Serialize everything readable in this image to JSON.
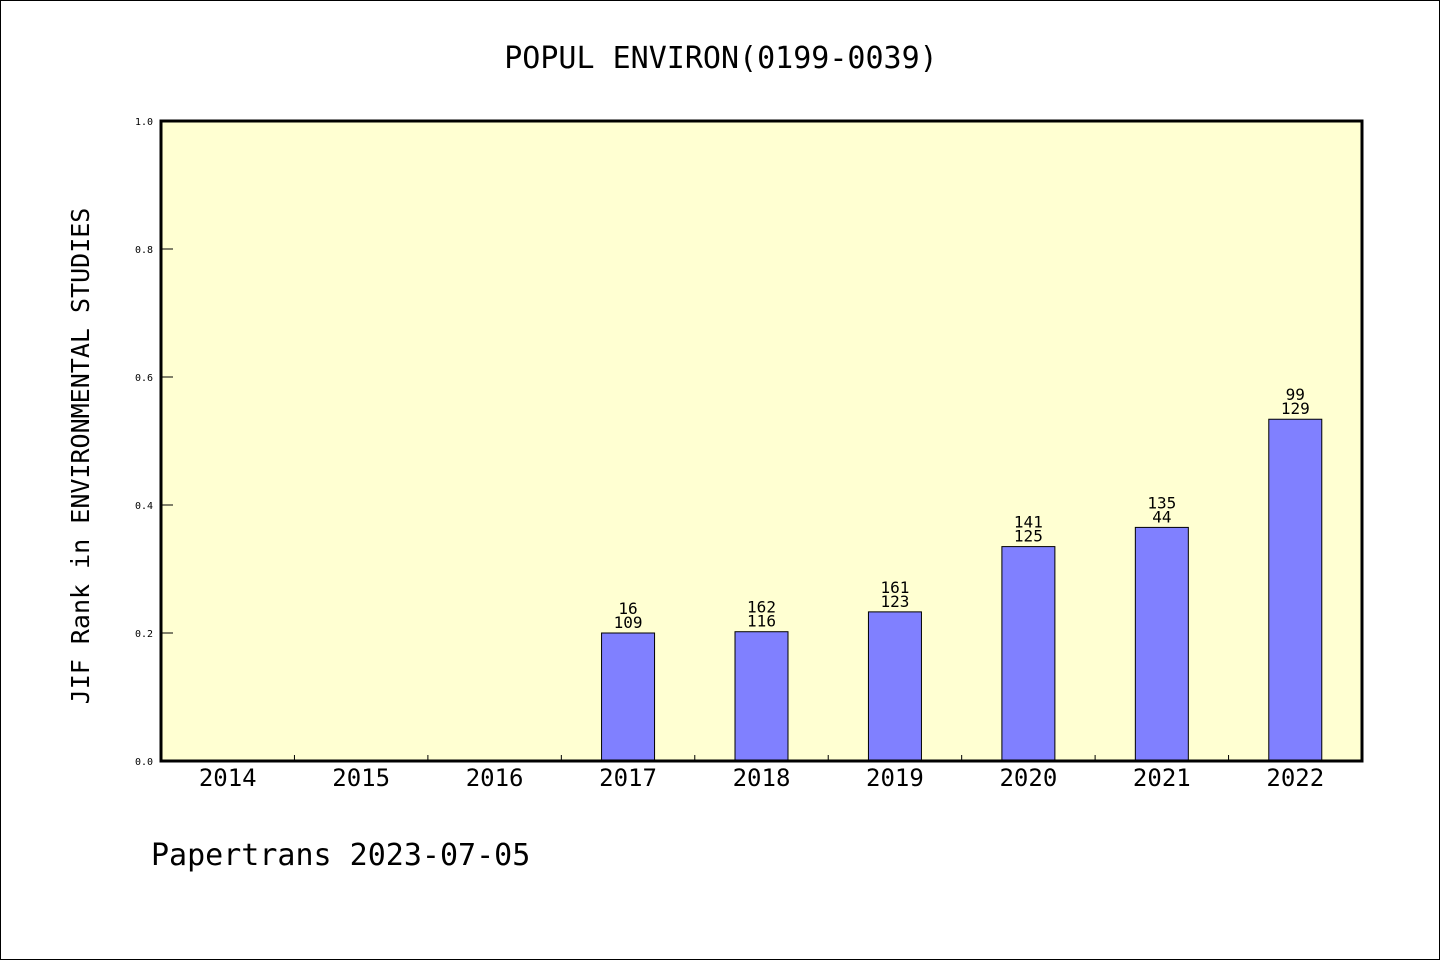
{
  "chart_data": {
    "type": "bar",
    "title": "POPUL ENVIRON(0199-0039)",
    "xlabel": "",
    "ylabel": "JIF Rank in ENVIRONMENTAL STUDIES",
    "ylim": [
      0,
      1.0
    ],
    "yticks": [
      "0.0",
      "0.2",
      "0.4",
      "0.6",
      "0.8",
      "1.0"
    ],
    "categories": [
      "2014",
      "2015",
      "2016",
      "2017",
      "2018",
      "2019",
      "2020",
      "2021",
      "2022"
    ],
    "values": [
      null,
      null,
      null,
      0.2,
      0.202,
      0.233,
      0.335,
      0.365,
      0.534
    ],
    "labels_top": [
      "",
      "",
      "",
      "16",
      "162",
      "161",
      "141",
      "135",
      "99"
    ],
    "labels_bottom": [
      "",
      "",
      "",
      "109",
      "116",
      "123",
      "125",
      "44",
      "129"
    ],
    "grid": false,
    "colors": {
      "plot_background": "#ffffd2",
      "bar_fill": "#8080ff",
      "bar_stroke": "#000000"
    }
  },
  "footer": "Papertrans 2023-07-05"
}
